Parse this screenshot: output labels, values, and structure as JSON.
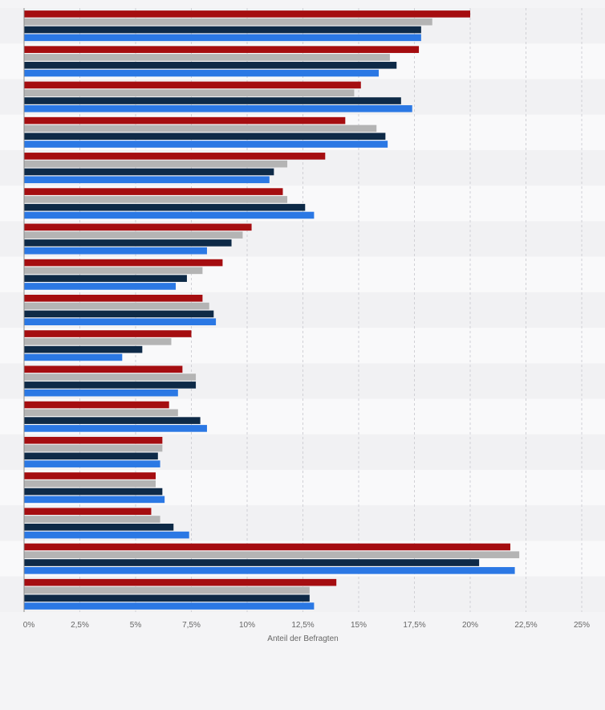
{
  "chart_data": {
    "type": "bar",
    "orientation": "horizontal",
    "xlabel": "Anteil der Befragten",
    "xlim": [
      0,
      25
    ],
    "x_ticks": [
      "0%",
      "2,5%",
      "5%",
      "7,5%",
      "10%",
      "12,5%",
      "15%",
      "17,5%",
      "20%",
      "22,5%",
      "25%"
    ],
    "grid": true,
    "legend": "none",
    "series": [
      {
        "color": "#a50d10",
        "values": [
          20.0,
          17.7,
          15.1,
          14.4,
          13.5,
          11.6,
          10.2,
          8.9,
          8.0,
          7.5,
          7.1,
          6.5,
          6.2,
          5.9,
          5.7,
          21.8,
          14.0
        ]
      },
      {
        "color": "#b4b4b4",
        "values": [
          18.3,
          16.4,
          14.8,
          15.8,
          11.8,
          11.8,
          9.8,
          8.0,
          8.3,
          6.6,
          7.7,
          6.9,
          6.2,
          5.9,
          6.1,
          22.2,
          12.8
        ]
      },
      {
        "color": "#0e2a47",
        "values": [
          17.8,
          16.7,
          16.9,
          16.2,
          11.2,
          12.6,
          9.3,
          7.3,
          8.5,
          5.3,
          7.7,
          7.9,
          6.0,
          6.2,
          6.7,
          20.4,
          12.8
        ]
      },
      {
        "color": "#2b78e4",
        "values": [
          17.8,
          15.9,
          17.4,
          16.3,
          11.0,
          13.0,
          8.2,
          6.8,
          8.6,
          4.4,
          6.9,
          8.2,
          6.1,
          6.3,
          7.4,
          22.0,
          13.0
        ]
      }
    ]
  }
}
